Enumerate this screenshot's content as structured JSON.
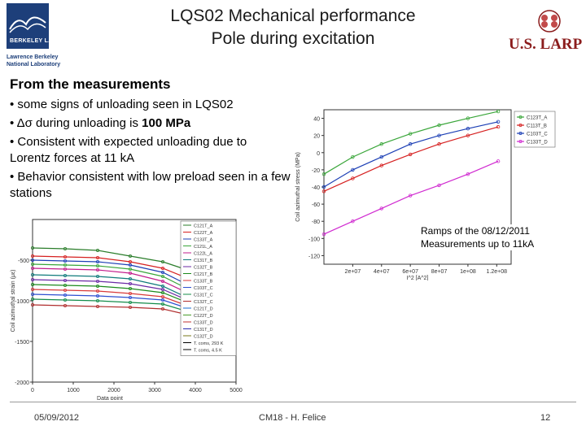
{
  "header": {
    "logo_left_text": "BERKELEY LAB",
    "logo_left_sub": [
      "Lawrence Berkeley",
      "National Laboratory"
    ],
    "title_line1": "LQS02 Mechanical performance",
    "title_line2": "Pole during excitation",
    "logo_right_text": "U.S. LARP"
  },
  "content": {
    "heading": "From the measurements",
    "bullets": [
      "• some signs of unloading seen in LQS02",
      "• Δσ during unloading is 100 MPa",
      "• Consistent with expected unloading due to Lorentz forces at 11 kA",
      "• Behavior consistent with low preload seen in a few stations"
    ],
    "bullet2_prefix": "• Δσ during unloading is ",
    "bullet2_bold": "100 MPa",
    "ramps_line1": "Ramps of the 08/12/2011",
    "ramps_line2": "Measurements up to 11kA"
  },
  "footer": {
    "date": "05/09/2012",
    "author": "CM18 - H. Felice",
    "page": "12"
  },
  "chart_data": [
    {
      "type": "line",
      "xlabel": "Data point",
      "ylabel": "Coil azimuthal strain (με)",
      "x_ticks": [
        "0",
        "1000",
        "2000",
        "3000",
        "4000",
        "5000"
      ],
      "y_ticks": [
        "-500",
        "-1000",
        "-1500",
        "-2000"
      ],
      "xlim": [
        0,
        5000
      ],
      "ylim": [
        -2000,
        0
      ],
      "legend": [
        "C121T_A",
        "C122T_A",
        "C133T_A",
        "C121L_A",
        "C122L_A",
        "C131T_B",
        "C132T_B",
        "C121T_B",
        "C133T_B",
        "C103T_C",
        "C131T_C",
        "C132T_C",
        "C121T_D",
        "C122T_D",
        "C133T_D",
        "C131T_D",
        "C132T_D",
        "T. coms, 293 K",
        "T. coms, 4.5 K"
      ],
      "colors": [
        "#2a7d2a",
        "#d62020",
        "#1c3fb5",
        "#3aa63a",
        "#c21d8c",
        "#0f7b7b",
        "#6b2aa6",
        "#1c8a1c",
        "#d83a3a",
        "#2d4fd0",
        "#148c4a",
        "#b02d2d",
        "#1a6dd0",
        "#4a9d2a",
        "#c03030",
        "#2a2ab0",
        "#7a7a1a"
      ],
      "series_values": [
        [
          -350,
          -360,
          -380,
          -450,
          -520,
          -620,
          -700
        ],
        [
          -450,
          -460,
          -470,
          -520,
          -600,
          -720,
          -800
        ],
        [
          -500,
          -510,
          -520,
          -560,
          -650,
          -800,
          -870
        ],
        [
          -550,
          -560,
          -570,
          -610,
          -700,
          -850,
          -920
        ],
        [
          -600,
          -610,
          -620,
          -660,
          -760,
          -900,
          -960
        ],
        [
          -680,
          -690,
          -700,
          -730,
          -820,
          -960,
          -1000
        ],
        [
          -740,
          -750,
          -760,
          -790,
          -860,
          -990,
          -1040
        ],
        [
          -800,
          -810,
          -820,
          -850,
          -900,
          -1020,
          -1060
        ],
        [
          -860,
          -870,
          -880,
          -910,
          -950,
          -1060,
          -1090
        ],
        [
          -920,
          -930,
          -940,
          -960,
          -990,
          -1090,
          -1120
        ],
        [
          -980,
          -990,
          -1000,
          -1020,
          -1040,
          -1130,
          -1150
        ],
        [
          -1050,
          -1060,
          -1070,
          -1080,
          -1100,
          -1170,
          -1180
        ]
      ],
      "series_x": [
        0,
        800,
        1600,
        2400,
        3200,
        3800,
        4300
      ]
    },
    {
      "type": "scatter",
      "xlabel": "I^2 [A^2]",
      "ylabel": "Coil azimuthal stress (MPa)",
      "x_ticks": [
        "2e+07",
        "4e+07",
        "6e+07",
        "8e+07",
        "1e+08",
        "1.2e+08"
      ],
      "y_ticks": [
        "40",
        "20",
        "0",
        "-20",
        "-40",
        "-60",
        "-80",
        "-100",
        "-120"
      ],
      "xlim": [
        0,
        130000000
      ],
      "ylim": [
        -130,
        50
      ],
      "legend": [
        "C123T_A",
        "C113T_B",
        "C103T_C",
        "C133T_D"
      ],
      "colors": [
        "#3aa63a",
        "#d62020",
        "#1c3fb5",
        "#d02ad0"
      ],
      "series": [
        {
          "name": "C123T_A",
          "x": [
            0,
            20000000,
            40000000,
            60000000,
            80000000,
            100000000,
            121000000
          ],
          "values": [
            -25,
            -5,
            10,
            22,
            32,
            40,
            48
          ]
        },
        {
          "name": "C113T_B",
          "x": [
            0,
            20000000,
            40000000,
            60000000,
            80000000,
            100000000,
            121000000
          ],
          "values": [
            -45,
            -30,
            -15,
            -2,
            10,
            20,
            30
          ]
        },
        {
          "name": "C103T_C",
          "x": [
            0,
            20000000,
            40000000,
            60000000,
            80000000,
            100000000,
            121000000
          ],
          "values": [
            -40,
            -20,
            -5,
            10,
            20,
            28,
            36
          ]
        },
        {
          "name": "C133T_D",
          "x": [
            0,
            20000000,
            40000000,
            60000000,
            80000000,
            100000000,
            121000000
          ],
          "values": [
            -95,
            -80,
            -65,
            -50,
            -38,
            -25,
            -10
          ]
        }
      ]
    }
  ]
}
